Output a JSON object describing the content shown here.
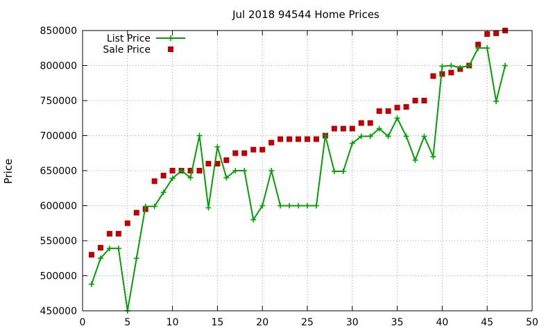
{
  "chart_data": {
    "type": "line",
    "title": "Jul 2018 94544 Home Prices",
    "xlabel": "",
    "ylabel": "Price",
    "xlim": [
      0,
      50
    ],
    "ylim": [
      450000,
      850000
    ],
    "xticks": [
      0,
      5,
      10,
      15,
      20,
      25,
      30,
      35,
      40,
      45,
      50
    ],
    "yticks": [
      450000,
      500000,
      550000,
      600000,
      650000,
      700000,
      750000,
      800000,
      850000
    ],
    "xtick_labels": [
      "0",
      "5",
      "10",
      "15",
      "20",
      "25",
      "30",
      "35",
      "40",
      "45",
      "50"
    ],
    "ytick_labels": [
      "450000",
      "500000",
      "550000",
      "600000",
      "650000",
      "700000",
      "750000",
      "800000",
      "850000"
    ],
    "grid": true,
    "legend_position": "top-left",
    "x": [
      1,
      2,
      3,
      4,
      5,
      6,
      7,
      8,
      9,
      10,
      11,
      12,
      13,
      14,
      15,
      16,
      17,
      18,
      19,
      20,
      21,
      22,
      23,
      24,
      25,
      26,
      27,
      28,
      29,
      30,
      31,
      32,
      33,
      34,
      35,
      36,
      37,
      38,
      39,
      40,
      41,
      42,
      43,
      44,
      45,
      46,
      47
    ],
    "series": [
      {
        "name": "List Price",
        "style": "line-points",
        "marker": "plus",
        "color": "#00a000",
        "values": [
          488000,
          525000,
          539000,
          539000,
          450000,
          525000,
          599000,
          599000,
          619000,
          639000,
          650000,
          640000,
          700000,
          597000,
          684000,
          640000,
          650000,
          650000,
          580000,
          600000,
          650000,
          600000,
          600000,
          600000,
          600000,
          600000,
          700000,
          649000,
          649000,
          689000,
          699000,
          699000,
          710000,
          699000,
          725000,
          699000,
          665000,
          699000,
          670000,
          799000,
          800000,
          797000,
          800000,
          825000,
          825000,
          749000,
          800000
        ]
      },
      {
        "name": "Sale Price",
        "style": "points",
        "marker": "square",
        "color": "#c00000",
        "values": [
          530000,
          540000,
          560000,
          560000,
          575000,
          590000,
          595000,
          635000,
          643000,
          650000,
          650000,
          650000,
          650000,
          660000,
          660000,
          665000,
          675000,
          675000,
          680000,
          680000,
          690000,
          695000,
          695000,
          695000,
          695000,
          695000,
          700000,
          710000,
          710000,
          710000,
          718000,
          718000,
          735000,
          735000,
          740000,
          741000,
          750000,
          750000,
          785000,
          788000,
          790000,
          795000,
          800000,
          830000,
          845000,
          846000,
          850000
        ]
      }
    ]
  }
}
